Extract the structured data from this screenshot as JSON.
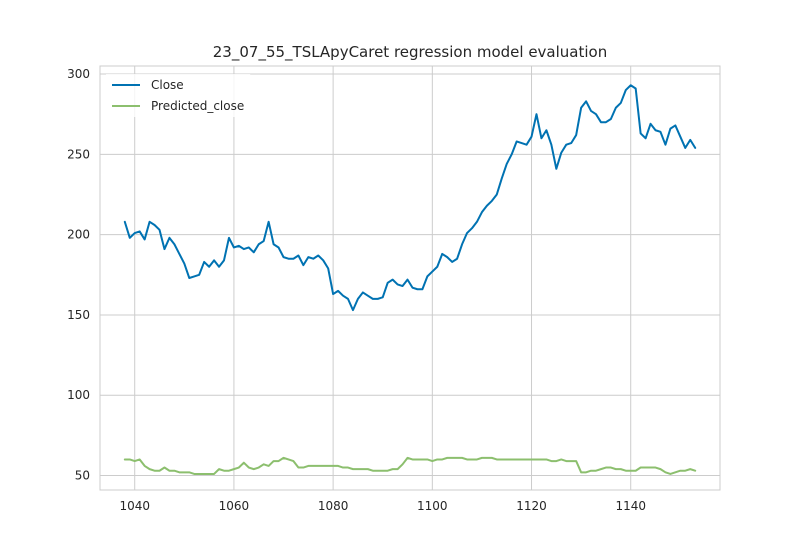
{
  "chart_data": {
    "type": "line",
    "title": "23_07_55_TSLApyCaret regression model evaluation",
    "xlabel": "",
    "ylabel": "",
    "xlim": [
      1033,
      1158
    ],
    "ylim": [
      41,
      305
    ],
    "xticks": [
      1040,
      1060,
      1080,
      1100,
      1120,
      1140
    ],
    "yticks": [
      50,
      100,
      150,
      200,
      250,
      300
    ],
    "grid": true,
    "legend": "top-left",
    "x": [
      1038,
      1039,
      1040,
      1041,
      1042,
      1043,
      1044,
      1045,
      1046,
      1047,
      1048,
      1049,
      1050,
      1051,
      1052,
      1053,
      1054,
      1055,
      1056,
      1057,
      1058,
      1059,
      1060,
      1061,
      1062,
      1063,
      1064,
      1065,
      1066,
      1067,
      1068,
      1069,
      1070,
      1071,
      1072,
      1073,
      1074,
      1075,
      1076,
      1077,
      1078,
      1079,
      1080,
      1081,
      1082,
      1083,
      1084,
      1085,
      1086,
      1087,
      1088,
      1089,
      1090,
      1091,
      1092,
      1093,
      1094,
      1095,
      1096,
      1097,
      1098,
      1099,
      1100,
      1101,
      1102,
      1103,
      1104,
      1105,
      1106,
      1107,
      1108,
      1109,
      1110,
      1111,
      1112,
      1113,
      1114,
      1115,
      1116,
      1117,
      1118,
      1119,
      1120,
      1121,
      1122,
      1123,
      1124,
      1125,
      1126,
      1127,
      1128,
      1129,
      1130,
      1131,
      1132,
      1133,
      1134,
      1135,
      1136,
      1137,
      1138,
      1139,
      1140,
      1141,
      1142,
      1143,
      1144,
      1145,
      1146,
      1147,
      1148,
      1149,
      1150,
      1151,
      1152,
      1153
    ],
    "series": [
      {
        "name": "Close",
        "color": "#0072b2",
        "values": [
          208,
          198,
          201,
          202,
          197,
          208,
          206,
          203,
          191,
          198,
          194,
          188,
          182,
          173,
          174,
          175,
          183,
          180,
          184,
          180,
          184,
          198,
          192,
          193,
          191,
          192,
          189,
          194,
          196,
          208,
          194,
          192,
          186,
          185,
          185,
          187,
          181,
          186,
          185,
          187,
          184,
          179,
          163,
          165,
          162,
          160,
          153,
          160,
          164,
          162,
          160,
          160,
          161,
          170,
          172,
          169,
          168,
          172,
          167,
          166,
          166,
          174,
          177,
          180,
          188,
          186,
          183,
          185,
          194,
          201,
          204,
          208,
          214,
          218,
          221,
          225,
          235,
          244,
          250,
          258,
          257,
          256,
          261,
          275,
          260,
          265,
          256,
          241,
          251,
          256,
          257,
          262,
          279,
          283,
          277,
          275,
          270,
          270,
          272,
          279,
          282,
          290,
          293,
          291,
          263,
          260,
          269,
          265,
          264,
          256,
          266,
          268,
          261,
          254,
          259,
          254
        ]
      },
      {
        "name": "Predicted_close",
        "color": "#8cbf6e",
        "values": [
          60,
          60,
          59,
          60,
          56,
          54,
          53,
          53,
          55,
          53,
          53,
          52,
          52,
          52,
          51,
          51,
          51,
          51,
          51,
          54,
          53,
          53,
          54,
          55,
          58,
          55,
          54,
          55,
          57,
          56,
          59,
          59,
          61,
          60,
          59,
          55,
          55,
          56,
          56,
          56,
          56,
          56,
          56,
          56,
          55,
          55,
          54,
          54,
          54,
          54,
          53,
          53,
          53,
          53,
          54,
          54,
          57,
          61,
          60,
          60,
          60,
          60,
          59,
          60,
          60,
          61,
          61,
          61,
          61,
          60,
          60,
          60,
          61,
          61,
          61,
          60,
          60,
          60,
          60,
          60,
          60,
          60,
          60,
          60,
          60,
          60,
          59,
          59,
          60,
          59,
          59,
          59,
          52,
          52,
          53,
          53,
          54,
          55,
          55,
          54,
          54,
          53,
          53,
          53,
          55,
          55,
          55,
          55,
          54,
          52,
          51,
          52,
          53,
          53,
          54,
          53
        ]
      }
    ]
  }
}
